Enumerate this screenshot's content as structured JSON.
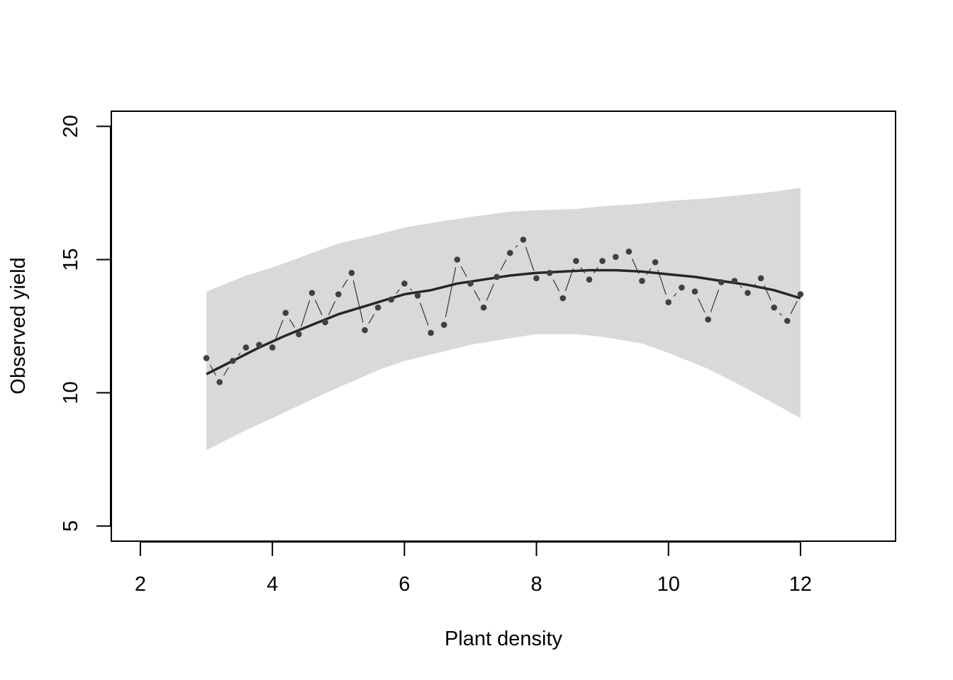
{
  "chart_data": {
    "type": "scatter",
    "title": "",
    "xlabel": "Plant density",
    "ylabel": "Observed yield",
    "xlim": [
      1.56,
      13.44
    ],
    "ylim": [
      4.43,
      20.57
    ],
    "x_ticks": [
      "2",
      "4",
      "6",
      "8",
      "10",
      "12"
    ],
    "y_ticks": [
      "5",
      "10",
      "15",
      "20"
    ],
    "grid": false,
    "legend": "none",
    "series": [
      {
        "kind": "band",
        "x": [
          3.0,
          3.6,
          4.0,
          4.6,
          5.0,
          5.6,
          6.0,
          6.6,
          7.0,
          7.6,
          8.0,
          8.6,
          9.0,
          9.6,
          10.0,
          10.6,
          11.0,
          11.6,
          12.0
        ],
        "lower": [
          7.85,
          8.6,
          9.05,
          9.75,
          10.2,
          10.85,
          11.2,
          11.55,
          11.8,
          12.05,
          12.2,
          12.2,
          12.1,
          11.85,
          11.5,
          10.9,
          10.4,
          9.6,
          9.05
        ],
        "upper": [
          13.8,
          14.4,
          14.7,
          15.25,
          15.6,
          15.95,
          16.2,
          16.45,
          16.6,
          16.8,
          16.85,
          16.9,
          17.0,
          17.1,
          17.2,
          17.3,
          17.4,
          17.55,
          17.7
        ],
        "color": "#d9d9d9"
      },
      {
        "kind": "line",
        "x": [
          3.0,
          3.4,
          3.8,
          4.2,
          4.6,
          5.0,
          5.4,
          5.8,
          6.0,
          6.4,
          6.8,
          7.2,
          7.6,
          8.0,
          8.4,
          8.8,
          9.2,
          9.6,
          10.0,
          10.4,
          10.8,
          11.2,
          11.6,
          12.0
        ],
        "y": [
          10.7,
          11.2,
          11.7,
          12.15,
          12.55,
          12.95,
          13.25,
          13.55,
          13.7,
          13.85,
          14.1,
          14.25,
          14.4,
          14.5,
          14.55,
          14.6,
          14.6,
          14.55,
          14.45,
          14.35,
          14.2,
          14.05,
          13.85,
          13.55
        ],
        "color": "#262626"
      },
      {
        "kind": "points",
        "x": [
          3.0,
          3.2,
          3.4,
          3.6,
          3.8,
          4.0,
          4.2,
          4.4,
          4.6,
          4.8,
          5.0,
          5.2,
          5.4,
          5.6,
          5.8,
          6.0,
          6.2,
          6.4,
          6.6,
          6.8,
          7.0,
          7.2,
          7.4,
          7.6,
          7.8,
          8.0,
          8.2,
          8.4,
          8.6,
          8.8,
          9.0,
          9.2,
          9.4,
          9.6,
          9.8,
          10.0,
          10.2,
          10.4,
          10.6,
          10.8,
          11.0,
          11.2,
          11.4,
          11.6,
          11.8,
          12.0
        ],
        "y": [
          11.3,
          10.4,
          11.2,
          11.7,
          11.8,
          11.7,
          13.0,
          12.2,
          13.75,
          12.65,
          13.7,
          14.5,
          12.35,
          13.2,
          13.5,
          14.1,
          13.65,
          12.25,
          12.55,
          15.0,
          14.1,
          13.2,
          14.35,
          15.25,
          15.75,
          14.3,
          14.5,
          13.55,
          14.95,
          14.25,
          14.95,
          15.1,
          15.3,
          14.2,
          14.9,
          13.4,
          13.95,
          13.8,
          12.75,
          14.15,
          14.2,
          13.75,
          14.3,
          13.2,
          12.7,
          13.7
        ],
        "color": "#404040"
      }
    ]
  }
}
